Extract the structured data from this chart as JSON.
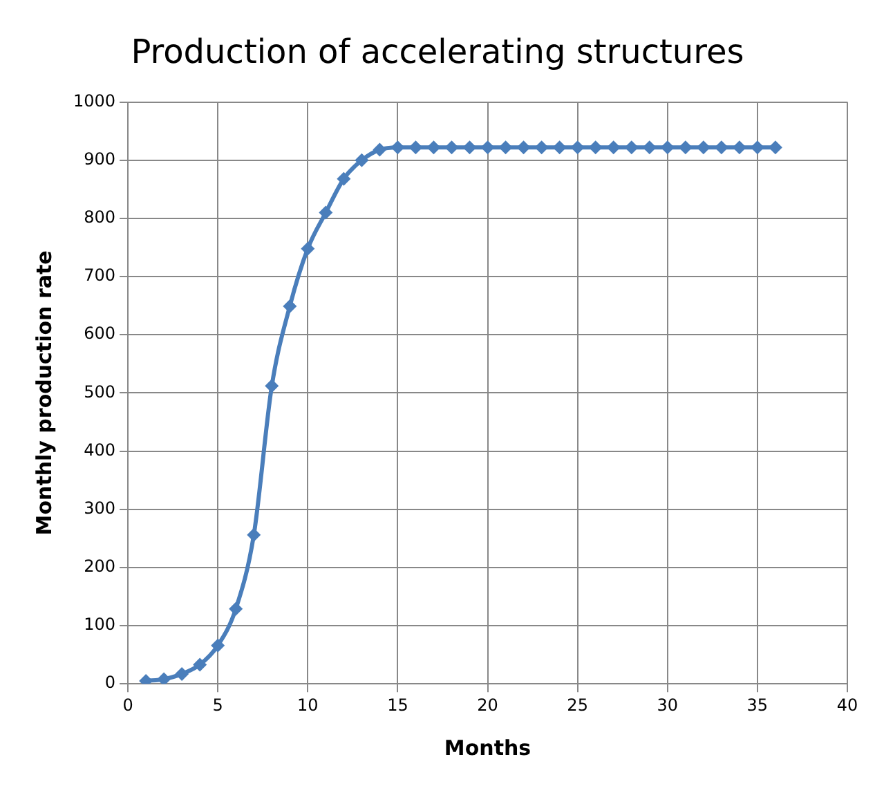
{
  "chart_data": {
    "type": "line",
    "title": "Production of accelerating structures",
    "xlabel": "Months",
    "ylabel": "Monthly production rate",
    "x": [
      1,
      2,
      3,
      4,
      5,
      6,
      7,
      8,
      9,
      10,
      11,
      12,
      13,
      14,
      15,
      16,
      17,
      18,
      19,
      20,
      21,
      22,
      23,
      24,
      25,
      26,
      27,
      28,
      29,
      30,
      31,
      32,
      33,
      34,
      35,
      36
    ],
    "series": [
      {
        "color": "#4a7ebb",
        "values": [
          5,
          8,
          17,
          33,
          66,
          129,
          256,
          512,
          649,
          748,
          810,
          868,
          900,
          918,
          922,
          922,
          922,
          922,
          922,
          922,
          922,
          922,
          922,
          922,
          922,
          922,
          922,
          922,
          922,
          922,
          922,
          922,
          922,
          922,
          922,
          922
        ]
      }
    ],
    "xlim": [
      0,
      40
    ],
    "xticks": [
      0,
      5,
      10,
      15,
      20,
      25,
      30,
      35,
      40
    ],
    "ylim": [
      0,
      1000
    ],
    "yticks": [
      0,
      100,
      200,
      300,
      400,
      500,
      600,
      700,
      800,
      900,
      1000
    ],
    "grid": true,
    "legend": false,
    "marker": "diamond",
    "line_style": "solid"
  }
}
